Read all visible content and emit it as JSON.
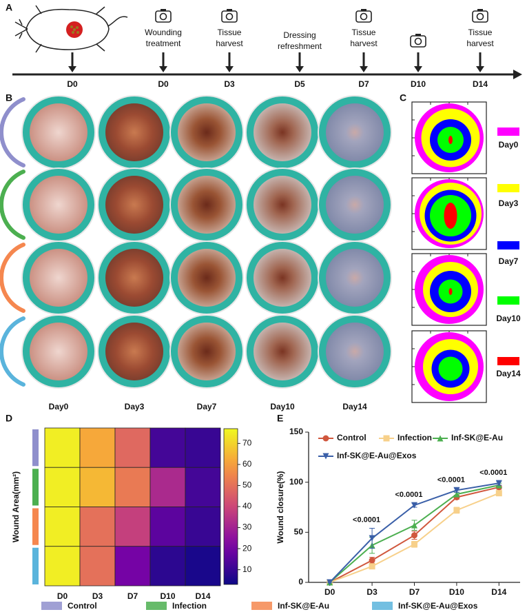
{
  "panel_labels": [
    "A",
    "B",
    "C",
    "D",
    "E"
  ],
  "timeline": {
    "events": [
      {
        "day": "D0",
        "mouse": true
      },
      {
        "label": [
          "Wounding",
          "treatment"
        ],
        "day": "D0",
        "camera": true
      },
      {
        "label": [
          "Tissue",
          "harvest"
        ],
        "day": "D3",
        "camera": true
      },
      {
        "label": [
          "Dressing",
          "refreshment"
        ],
        "day": "D5"
      },
      {
        "label": [
          "Tissue",
          "harvest"
        ],
        "day": "D7",
        "camera": true
      },
      {
        "day": "D10",
        "camera": true
      },
      {
        "label": [
          "Tissue",
          "harvest"
        ],
        "day": "D14",
        "camera": true
      }
    ]
  },
  "photos": {
    "columns": [
      "Day0",
      "Day3",
      "Day7",
      "Day10",
      "Day14"
    ]
  },
  "contour_legend": [
    {
      "name": "Day0",
      "color": "#ff00ff"
    },
    {
      "name": "Day3",
      "color": "#ffff00"
    },
    {
      "name": "Day7",
      "color": "#0000ff"
    },
    {
      "name": "Day10",
      "color": "#00ff00"
    },
    {
      "name": "Day14",
      "color": "#ff0000"
    }
  ],
  "chart_data": [
    {
      "type": "heatmap",
      "ylabel": "Wound Area(mm²)",
      "categories": [
        "D0",
        "D3",
        "D7",
        "D10",
        "D14"
      ],
      "rows": [
        {
          "name": "Control",
          "color": "#8f8fcc"
        },
        {
          "name": "Infection",
          "color": "#4caf50"
        },
        {
          "name": "Inf-SK@E-Au",
          "color": "#f5874f"
        },
        {
          "name": "Inf-SK@E-Au@Exos",
          "color": "#5ab4dc"
        }
      ],
      "values": [
        [
          75,
          62,
          48,
          12,
          10
        ],
        [
          75,
          65,
          52,
          32,
          12
        ],
        [
          75,
          50,
          38,
          16,
          10
        ],
        [
          75,
          50,
          20,
          8,
          5
        ]
      ],
      "zlim": [
        3,
        77
      ],
      "zticks": [
        10,
        20,
        30,
        40,
        50,
        60,
        70
      ]
    },
    {
      "type": "line",
      "ylabel": "Wound closure(%)",
      "categories": [
        "D0",
        "D3",
        "D7",
        "D10",
        "D14"
      ],
      "ylim": [
        0,
        150
      ],
      "yticks": [
        0,
        50,
        100,
        150
      ],
      "series": [
        {
          "name": "Control",
          "color": "#d0573d",
          "marker": "circle",
          "values": [
            0,
            22,
            47,
            85,
            95
          ],
          "errors": [
            0,
            3,
            4,
            2,
            2
          ]
        },
        {
          "name": "Infection",
          "color": "#f7d08a",
          "marker": "square",
          "values": [
            0,
            16,
            38,
            72,
            89
          ],
          "errors": [
            0,
            2,
            3,
            3,
            2
          ]
        },
        {
          "name": "Inf-SK@E-Au",
          "color": "#4caf50",
          "marker": "triangle",
          "values": [
            0,
            37,
            57,
            88,
            97
          ],
          "errors": [
            0,
            8,
            5,
            2,
            2
          ]
        },
        {
          "name": "Inf-SK@E-Au@Exos",
          "color": "#3a5fa8",
          "marker": "down-triangle",
          "values": [
            0,
            44,
            77,
            92,
            99
          ],
          "errors": [
            0,
            10,
            2,
            2,
            2
          ]
        }
      ],
      "annotations": [
        null,
        "<0.0001",
        "<0.0001",
        "<0.0001",
        "<0.0001"
      ]
    }
  ]
}
